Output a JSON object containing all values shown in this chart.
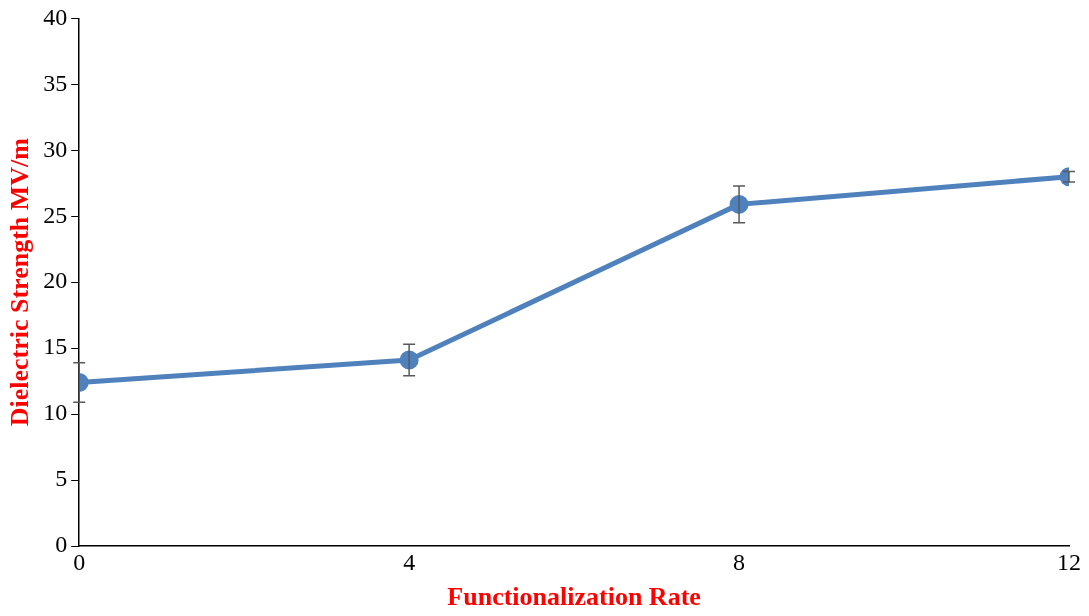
{
  "chart_data": {
    "type": "line",
    "xlabel": "Functionalization Rate",
    "ylabel": "Dielectric Strength MV/m",
    "x": [
      0,
      4,
      8,
      12
    ],
    "xlim": [
      0,
      12
    ],
    "xticks": [
      0,
      4,
      8,
      12
    ],
    "ylim": [
      0,
      40
    ],
    "yticks": [
      0,
      5,
      10,
      15,
      20,
      25,
      30,
      35,
      40
    ],
    "series": [
      {
        "color": "#4f81bd",
        "values": [
          12.4,
          14.1,
          25.9,
          28.0
        ],
        "errors": [
          1.5,
          1.2,
          1.4,
          0.4
        ]
      }
    ],
    "marker": "circle",
    "grid": false,
    "legend": false
  }
}
